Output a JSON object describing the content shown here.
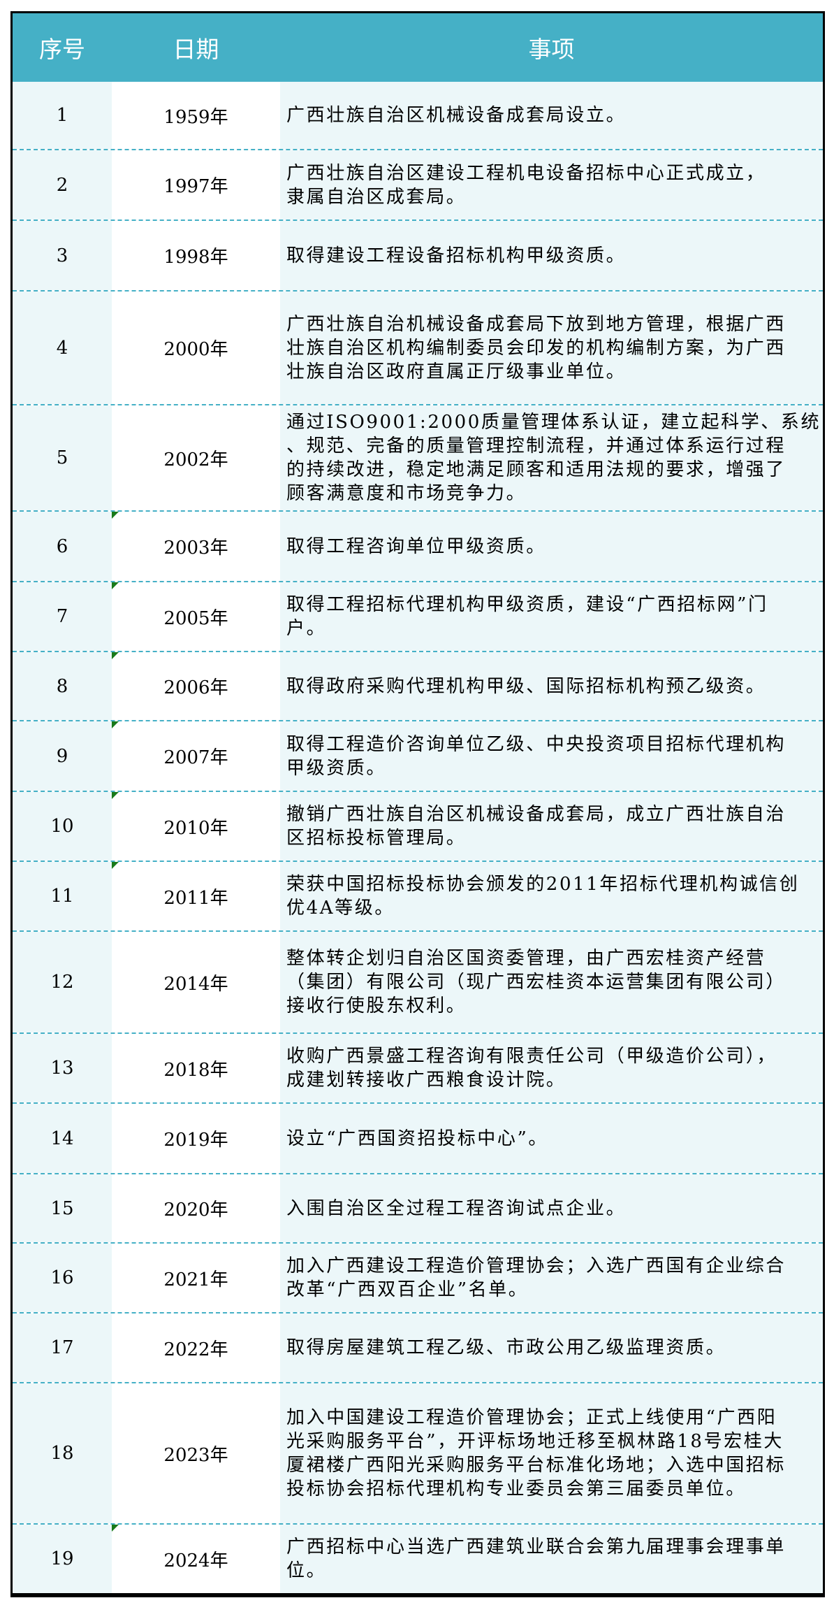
{
  "colors": {
    "header_bg": "#45b0c6",
    "band_bg": "#ecf7f9",
    "comment_marker": "#1a7a1a"
  },
  "table": {
    "headers": [
      "序号",
      "日期",
      "事项"
    ],
    "rows": [
      {
        "no": "1",
        "date": "1959年",
        "lines": [
          "广西壮族自治区机械设备成套局设立。"
        ]
      },
      {
        "no": "2",
        "date": "1997年",
        "lines": [
          "广西壮族自治区建设工程机电设备招标中心正式成立，",
          "隶属自治区成套局。"
        ]
      },
      {
        "no": "3",
        "date": "1998年",
        "lines": [
          "取得建设工程设备招标机构甲级资质。"
        ]
      },
      {
        "no": "4",
        "date": "2000年",
        "lines": [
          "广西壮族自治机械设备成套局下放到地方管理，根据广西",
          "壮族自治区机构编制委员会印发的机构编制方案，为广西",
          "壮族自治区政府直属正厅级事业单位。"
        ]
      },
      {
        "no": "5",
        "date": "2002年",
        "lines": [
          "通过ISO9001:2000质量管理体系认证，建立起科学、系统",
          "、规范、完备的质量管理控制流程，并通过体系运行过程",
          "的持续改进，稳定地满足顾客和适用法规的要求，增强了",
          "顾客满意度和市场竞争力。"
        ]
      },
      {
        "no": "6",
        "date": "2003年",
        "comment": true,
        "lines": [
          "取得工程咨询单位甲级资质。"
        ]
      },
      {
        "no": "7",
        "date": "2005年",
        "comment": true,
        "lines": [
          "取得工程招标代理机构甲级资质，建设“广西招标网”门",
          "户。"
        ]
      },
      {
        "no": "8",
        "date": "2006年",
        "comment": true,
        "lines": [
          "取得政府采购代理机构甲级、国际招标机构预乙级资。"
        ]
      },
      {
        "no": "9",
        "date": "2007年",
        "comment": true,
        "lines": [
          "取得工程造价咨询单位乙级、中央投资项目招标代理机构",
          "甲级资质。"
        ]
      },
      {
        "no": "10",
        "date": "2010年",
        "comment": true,
        "lines": [
          "撤销广西壮族自治区机械设备成套局，成立广西壮族自治",
          "区招标投标管理局。"
        ]
      },
      {
        "no": "11",
        "date": "2011年",
        "comment": true,
        "lines": [
          "荣获中国招标投标协会颁发的2011年招标代理机构诚信创",
          "优4A等级。"
        ]
      },
      {
        "no": "12",
        "date": "2014年",
        "lines": [
          "整体转企划归自治区国资委管理，由广西宏桂资产经营",
          "（集团）有限公司（现广西宏桂资本运营集团有限公司）",
          "接收行使股东权利。"
        ]
      },
      {
        "no": "13",
        "date": "2018年",
        "lines": [
          "收购广西景盛工程咨询有限责任公司（甲级造价公司），",
          "成建划转接收广西粮食设计院。"
        ]
      },
      {
        "no": "14",
        "date": "2019年",
        "lines": [
          "设立“广西国资招投标中心”。"
        ]
      },
      {
        "no": "15",
        "date": "2020年",
        "lines": [
          "入围自治区全过程工程咨询试点企业。"
        ]
      },
      {
        "no": "16",
        "date": "2021年",
        "lines": [
          "加入广西建设工程造价管理协会；入选广西国有企业综合",
          "改革“广西双百企业”名单。"
        ]
      },
      {
        "no": "17",
        "date": "2022年",
        "lines": [
          "取得房屋建筑工程乙级、市政公用乙级监理资质。"
        ]
      },
      {
        "no": "18",
        "date": "2023年",
        "lines": [
          "加入中国建设工程造价管理协会；正式上线使用“广西阳",
          "光采购服务平台”，开评标场地迁移至枫林路18号宏桂大",
          "厦裙楼广西阳光采购服务平台标准化场地；入选中国招标",
          "投标协会招标代理机构专业委员会第三届委员单位。"
        ]
      },
      {
        "no": "19",
        "date": "2024年",
        "comment": true,
        "lines": [
          "广西招标中心当选广西建筑业联合会第九届理事会理事单",
          "位。"
        ]
      }
    ]
  }
}
